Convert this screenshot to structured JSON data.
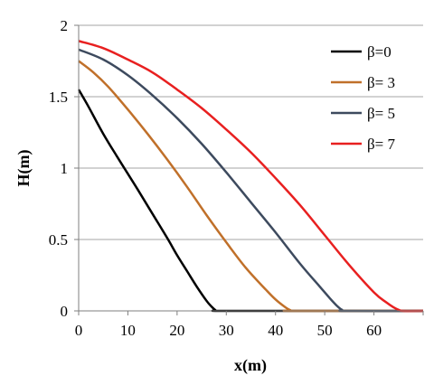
{
  "chart_data": {
    "type": "line",
    "title": "",
    "xlabel": "x(m)",
    "ylabel": "H(m)",
    "xlim": [
      0,
      70
    ],
    "ylim": [
      0,
      2
    ],
    "xticks": [
      0,
      10,
      20,
      30,
      40,
      50,
      60
    ],
    "yticks": [
      0,
      0.5,
      1,
      1.5,
      2
    ],
    "ytick_labels": [
      "0",
      "0.5",
      "1",
      "1.5",
      "2"
    ],
    "grid": "horizontal",
    "legend_position": "top-right",
    "series": [
      {
        "name": "β=0",
        "color": "#000000",
        "x": [
          0,
          2,
          5,
          8,
          10,
          12,
          15,
          18,
          20,
          22,
          24,
          26,
          27,
          27.8,
          28.2,
          40,
          70
        ],
        "y": [
          1.55,
          1.43,
          1.24,
          1.07,
          0.96,
          0.85,
          0.68,
          0.51,
          0.39,
          0.28,
          0.17,
          0.07,
          0.03,
          0.005,
          0,
          0,
          0
        ]
      },
      {
        "name": "β= 3",
        "color": "#c0702a",
        "x": [
          0,
          3,
          6,
          10,
          14,
          18,
          22,
          26,
          30,
          34,
          38,
          40,
          42,
          43,
          44,
          70
        ],
        "y": [
          1.75,
          1.67,
          1.57,
          1.41,
          1.24,
          1.06,
          0.87,
          0.67,
          0.48,
          0.3,
          0.15,
          0.08,
          0.025,
          0.005,
          0,
          0
        ]
      },
      {
        "name": "β= 5",
        "color": "#3d4a5e",
        "x": [
          0,
          5,
          10,
          15,
          20,
          25,
          30,
          35,
          40,
          45,
          49,
          51,
          52.5,
          53.5,
          54.5,
          70
        ],
        "y": [
          1.83,
          1.76,
          1.65,
          1.51,
          1.35,
          1.17,
          0.97,
          0.76,
          0.55,
          0.33,
          0.17,
          0.09,
          0.035,
          0.008,
          0,
          0
        ]
      },
      {
        "name": "β= 7",
        "color": "#e82020",
        "x": [
          0,
          5,
          10,
          15,
          20,
          25,
          30,
          35,
          40,
          45,
          50,
          55,
          60,
          62.5,
          64,
          65,
          66,
          70
        ],
        "y": [
          1.89,
          1.84,
          1.76,
          1.67,
          1.55,
          1.42,
          1.27,
          1.11,
          0.93,
          0.74,
          0.53,
          0.32,
          0.13,
          0.06,
          0.025,
          0.008,
          0,
          0
        ]
      }
    ]
  }
}
